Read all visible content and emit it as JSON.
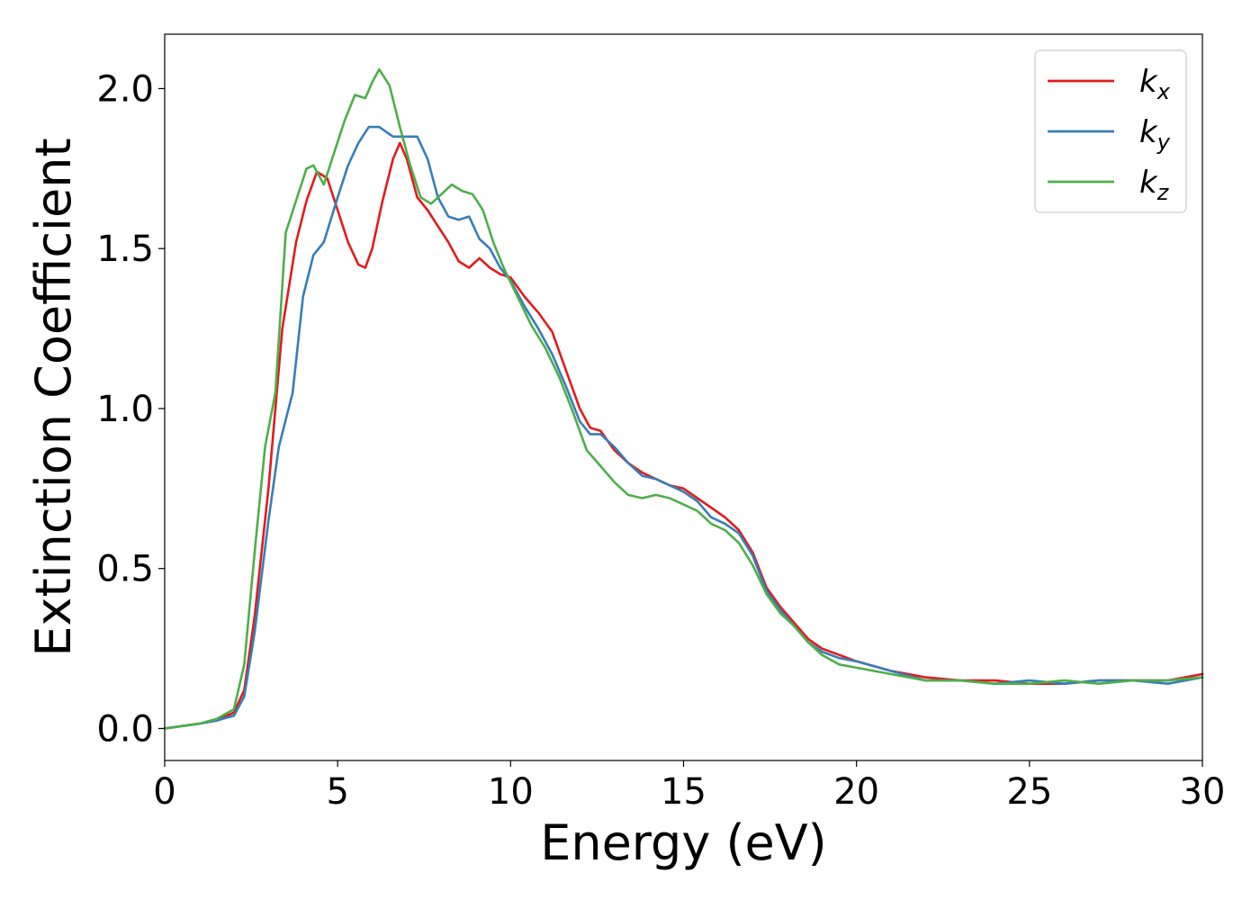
{
  "chart_data": {
    "type": "line",
    "xlabel": "Energy (eV)",
    "ylabel": "Extinction Coefficient",
    "xlim": [
      0,
      30
    ],
    "ylim": [
      -0.1,
      2.17
    ],
    "xticks": [
      0,
      5,
      10,
      15,
      20,
      25,
      30
    ],
    "xtick_labels": [
      "0",
      "5",
      "10",
      "15",
      "20",
      "25",
      "30"
    ],
    "yticks": [
      0.0,
      0.5,
      1.0,
      1.5,
      2.0
    ],
    "ytick_labels": [
      "0.0",
      "0.5",
      "1.0",
      "1.5",
      "2.0"
    ],
    "grid": false,
    "legend_position": "top-right",
    "series": [
      {
        "name": "k_x",
        "label_main": "k",
        "label_sub": "x",
        "color": "#e41a1c",
        "x": [
          0,
          1,
          1.5,
          2.0,
          2.3,
          2.6,
          3.0,
          3.4,
          3.8,
          4.1,
          4.4,
          4.7,
          5.0,
          5.3,
          5.6,
          5.8,
          6.0,
          6.3,
          6.6,
          6.8,
          7.0,
          7.3,
          7.6,
          7.9,
          8.2,
          8.5,
          8.8,
          9.1,
          9.4,
          9.7,
          10.0,
          10.4,
          10.8,
          11.2,
          11.6,
          12.0,
          12.3,
          12.6,
          13.0,
          13.4,
          13.8,
          14.2,
          14.6,
          15.0,
          15.4,
          15.8,
          16.2,
          16.6,
          17.0,
          17.4,
          17.8,
          18.2,
          18.6,
          19.0,
          19.5,
          20,
          21,
          22,
          23,
          24,
          25,
          26,
          27,
          28,
          29,
          30
        ],
        "y": [
          0,
          0.015,
          0.025,
          0.05,
          0.12,
          0.35,
          0.75,
          1.25,
          1.52,
          1.65,
          1.74,
          1.72,
          1.62,
          1.52,
          1.45,
          1.44,
          1.5,
          1.65,
          1.78,
          1.83,
          1.78,
          1.66,
          1.62,
          1.57,
          1.52,
          1.46,
          1.44,
          1.47,
          1.44,
          1.42,
          1.41,
          1.35,
          1.3,
          1.24,
          1.12,
          1.0,
          0.94,
          0.93,
          0.87,
          0.83,
          0.8,
          0.78,
          0.76,
          0.75,
          0.72,
          0.69,
          0.66,
          0.62,
          0.55,
          0.44,
          0.38,
          0.33,
          0.28,
          0.25,
          0.23,
          0.21,
          0.18,
          0.16,
          0.15,
          0.15,
          0.14,
          0.14,
          0.15,
          0.15,
          0.15,
          0.17
        ]
      },
      {
        "name": "k_y",
        "label_main": "k",
        "label_sub": "y",
        "color": "#377eb8",
        "x": [
          0,
          1,
          1.5,
          2.0,
          2.3,
          2.6,
          3.0,
          3.3,
          3.7,
          4.0,
          4.3,
          4.6,
          5.0,
          5.3,
          5.6,
          5.9,
          6.2,
          6.6,
          7.0,
          7.3,
          7.6,
          7.9,
          8.2,
          8.5,
          8.8,
          9.1,
          9.4,
          9.7,
          10.0,
          10.4,
          10.8,
          11.2,
          11.6,
          12.0,
          12.3,
          12.6,
          13.0,
          13.4,
          13.8,
          14.2,
          14.6,
          15.0,
          15.4,
          15.8,
          16.2,
          16.6,
          17.0,
          17.4,
          17.8,
          18.2,
          18.6,
          19.0,
          19.5,
          20,
          21,
          22,
          23,
          24,
          25,
          26,
          27,
          28,
          29,
          30
        ],
        "y": [
          0,
          0.015,
          0.025,
          0.04,
          0.1,
          0.3,
          0.65,
          0.88,
          1.05,
          1.35,
          1.48,
          1.52,
          1.66,
          1.76,
          1.83,
          1.88,
          1.88,
          1.85,
          1.85,
          1.85,
          1.78,
          1.66,
          1.6,
          1.59,
          1.6,
          1.53,
          1.5,
          1.44,
          1.4,
          1.32,
          1.25,
          1.17,
          1.07,
          0.96,
          0.92,
          0.92,
          0.88,
          0.83,
          0.79,
          0.78,
          0.76,
          0.74,
          0.71,
          0.66,
          0.64,
          0.61,
          0.54,
          0.43,
          0.37,
          0.32,
          0.27,
          0.24,
          0.22,
          0.21,
          0.18,
          0.15,
          0.15,
          0.14,
          0.15,
          0.14,
          0.15,
          0.15,
          0.14,
          0.16
        ]
      },
      {
        "name": "k_z",
        "label_main": "k",
        "label_sub": "z",
        "color": "#4daf4a",
        "x": [
          0,
          1,
          1.5,
          2.0,
          2.3,
          2.6,
          2.9,
          3.2,
          3.5,
          3.8,
          4.1,
          4.3,
          4.6,
          4.9,
          5.2,
          5.5,
          5.8,
          6.0,
          6.2,
          6.5,
          6.8,
          7.1,
          7.4,
          7.7,
          8.0,
          8.3,
          8.6,
          8.9,
          9.2,
          9.5,
          9.8,
          10.2,
          10.6,
          11.0,
          11.4,
          11.8,
          12.2,
          12.6,
          13.0,
          13.4,
          13.8,
          14.2,
          14.6,
          15.0,
          15.4,
          15.8,
          16.2,
          16.6,
          17.0,
          17.4,
          17.8,
          18.2,
          18.6,
          19.0,
          19.5,
          20,
          21,
          22,
          23,
          24,
          25,
          26,
          27,
          28,
          29,
          30
        ],
        "y": [
          0,
          0.015,
          0.03,
          0.06,
          0.2,
          0.55,
          0.88,
          1.05,
          1.55,
          1.65,
          1.75,
          1.76,
          1.7,
          1.8,
          1.9,
          1.98,
          1.97,
          2.02,
          2.06,
          2.01,
          1.88,
          1.76,
          1.66,
          1.64,
          1.67,
          1.7,
          1.68,
          1.67,
          1.62,
          1.52,
          1.44,
          1.35,
          1.26,
          1.19,
          1.1,
          0.99,
          0.87,
          0.82,
          0.77,
          0.73,
          0.72,
          0.73,
          0.72,
          0.7,
          0.68,
          0.64,
          0.62,
          0.58,
          0.51,
          0.42,
          0.36,
          0.32,
          0.27,
          0.23,
          0.2,
          0.19,
          0.17,
          0.15,
          0.15,
          0.14,
          0.14,
          0.15,
          0.14,
          0.15,
          0.15,
          0.16
        ]
      }
    ]
  }
}
